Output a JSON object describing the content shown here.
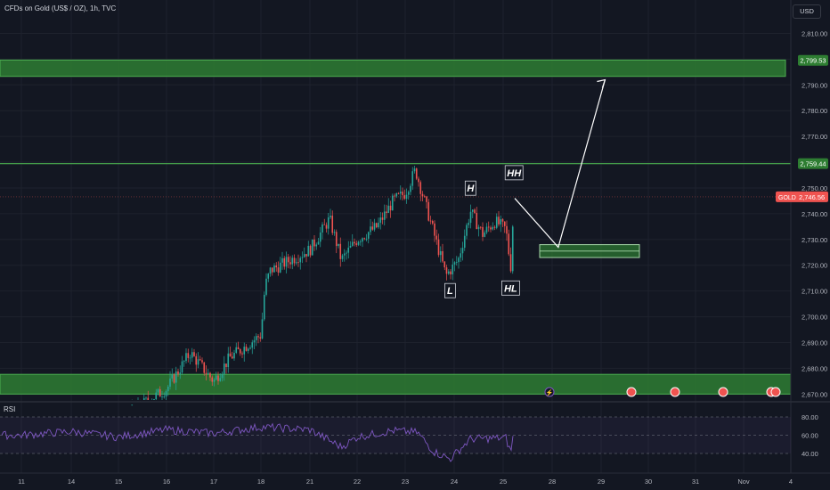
{
  "header": {
    "title": "CFDs on Gold (US$ / OZ), 1h, TVC",
    "currency": "USD"
  },
  "rsi_panel": {
    "label": "RSI",
    "ticks": [
      "80.00",
      "60.00",
      "40.00"
    ]
  },
  "colors": {
    "background": "#131722",
    "up": "#26a69a",
    "down": "#ef5350",
    "zone_fill": "#2e7d32",
    "zone_line": "#4caf50",
    "rsi_line": "#7e57c2",
    "arrow": "#ffffff"
  },
  "chart_data": {
    "type": "candlestick",
    "symbol": "GOLD",
    "ylim": [
      2665,
      2815
    ],
    "y_ticks": [
      2670,
      2680,
      2690,
      2700,
      2710,
      2720,
      2730,
      2740,
      2750,
      2760,
      2770,
      2780,
      2790,
      2800,
      2810
    ],
    "x_labels": [
      "11",
      "14",
      "15",
      "16",
      "17",
      "18",
      "21",
      "22",
      "23",
      "24",
      "25",
      "28",
      "29",
      "30",
      "31",
      "Nov",
      "4"
    ],
    "price_labels": [
      {
        "text": "2,799.53",
        "value": 2799.53,
        "kind": "zone"
      },
      {
        "text": "2,759.44",
        "value": 2759.44,
        "kind": "zone"
      },
      {
        "text": "2,746.56",
        "value": 2746.56,
        "kind": "current",
        "symbol": "GOLD"
      }
    ],
    "zones": [
      {
        "name": "upper-resistance-zone",
        "low": 2794,
        "high": 2800
      },
      {
        "name": "resistance-line",
        "value": 2759.44
      },
      {
        "name": "lower-support-zone",
        "low": 2670,
        "high": 2678
      },
      {
        "name": "retest-zone",
        "low": 2723,
        "high": 2728
      }
    ],
    "structure_labels": [
      {
        "text": "L",
        "date": "Oct 23 22:00",
        "value": 2715
      },
      {
        "text": "H",
        "date": "Oct 24 08:00",
        "value": 2743
      },
      {
        "text": "HL",
        "date": "Oct 25 11:00",
        "value": 2716
      },
      {
        "text": "HH",
        "date": "Oct 25 16:00",
        "value": 2749
      }
    ],
    "projection": [
      {
        "date": "Oct 25 17:00",
        "value": 2746
      },
      {
        "date": "Oct 28 03:00",
        "value": 2727
      },
      {
        "date": "Oct 29 02:00",
        "value": 2792
      }
    ],
    "price_path": [
      {
        "date": "Oct 11",
        "value": 2652
      },
      {
        "date": "Oct 14",
        "value": 2658
      },
      {
        "date": "Oct 15",
        "value": 2660
      },
      {
        "date": "Oct 16",
        "value": 2672
      },
      {
        "date": "Oct 16 12:00",
        "value": 2686
      },
      {
        "date": "Oct 17",
        "value": 2675
      },
      {
        "date": "Oct 17 08:00",
        "value": 2684
      },
      {
        "date": "Oct 18",
        "value": 2693
      },
      {
        "date": "Oct 18 06:00",
        "value": 2712
      },
      {
        "date": "Oct 18 14:00",
        "value": 2718
      },
      {
        "date": "Oct 21",
        "value": 2726
      },
      {
        "date": "Oct 21 10:00",
        "value": 2738
      },
      {
        "date": "Oct 21 16:00",
        "value": 2722
      },
      {
        "date": "Oct 22",
        "value": 2730
      },
      {
        "date": "Oct 22 10:00",
        "value": 2735
      },
      {
        "date": "Oct 22 18:00",
        "value": 2745
      },
      {
        "date": "Oct 23",
        "value": 2748
      },
      {
        "date": "Oct 23 05:00",
        "value": 2757
      },
      {
        "date": "Oct 23 12:00",
        "value": 2738
      },
      {
        "date": "Oct 23 20:00",
        "value": 2716
      },
      {
        "date": "Oct 24 02:00",
        "value": 2722
      },
      {
        "date": "Oct 24 08:00",
        "value": 2741
      },
      {
        "date": "Oct 24 14:00",
        "value": 2732
      },
      {
        "date": "Oct 24 20:00",
        "value": 2737
      },
      {
        "date": "Oct 25 04:00",
        "value": 2734
      },
      {
        "date": "Oct 25 11:00",
        "value": 2719
      },
      {
        "date": "Oct 25 13:00",
        "value": 2730
      },
      {
        "date": "Oct 25 16:00",
        "value": 2746
      }
    ],
    "rsi_ylim": [
      30,
      85
    ],
    "rsi_path": [
      {
        "date": "Oct 11",
        "value": 60
      },
      {
        "date": "Oct 14",
        "value": 64
      },
      {
        "date": "Oct 15",
        "value": 58
      },
      {
        "date": "Oct 16",
        "value": 66
      },
      {
        "date": "Oct 17",
        "value": 62
      },
      {
        "date": "Oct 18",
        "value": 69
      },
      {
        "date": "Oct 21",
        "value": 66
      },
      {
        "date": "Oct 21 16:00",
        "value": 47
      },
      {
        "date": "Oct 22",
        "value": 58
      },
      {
        "date": "Oct 22 18:00",
        "value": 65
      },
      {
        "date": "Oct 23 06:00",
        "value": 63
      },
      {
        "date": "Oct 23 14:00",
        "value": 42
      },
      {
        "date": "Oct 23 22:00",
        "value": 34
      },
      {
        "date": "Oct 24 08:00",
        "value": 56
      },
      {
        "date": "Oct 25 04:00",
        "value": 57
      },
      {
        "date": "Oct 25 11:00",
        "value": 41
      },
      {
        "date": "Oct 25 16:00",
        "value": 66
      }
    ]
  }
}
